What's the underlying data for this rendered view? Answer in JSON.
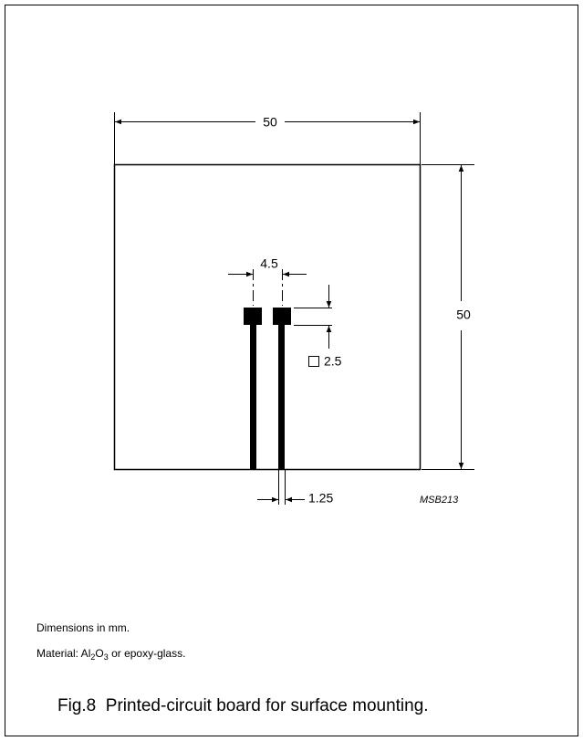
{
  "drawing": {
    "width_label": "50",
    "height_label": "50",
    "pad_pitch_label": "4.5",
    "pad_size_label": "2.5",
    "trace_width_label": "1.25",
    "code": "MSB213"
  },
  "notes": {
    "dimensions": "Dimensions in mm.",
    "material": {
      "prefix": "Material: Al",
      "sub1": "2",
      "mid": "O",
      "sub2": "3",
      "suffix": " or epoxy-glass."
    }
  },
  "caption": "Fig.8  Printed-circuit board for surface mounting."
}
